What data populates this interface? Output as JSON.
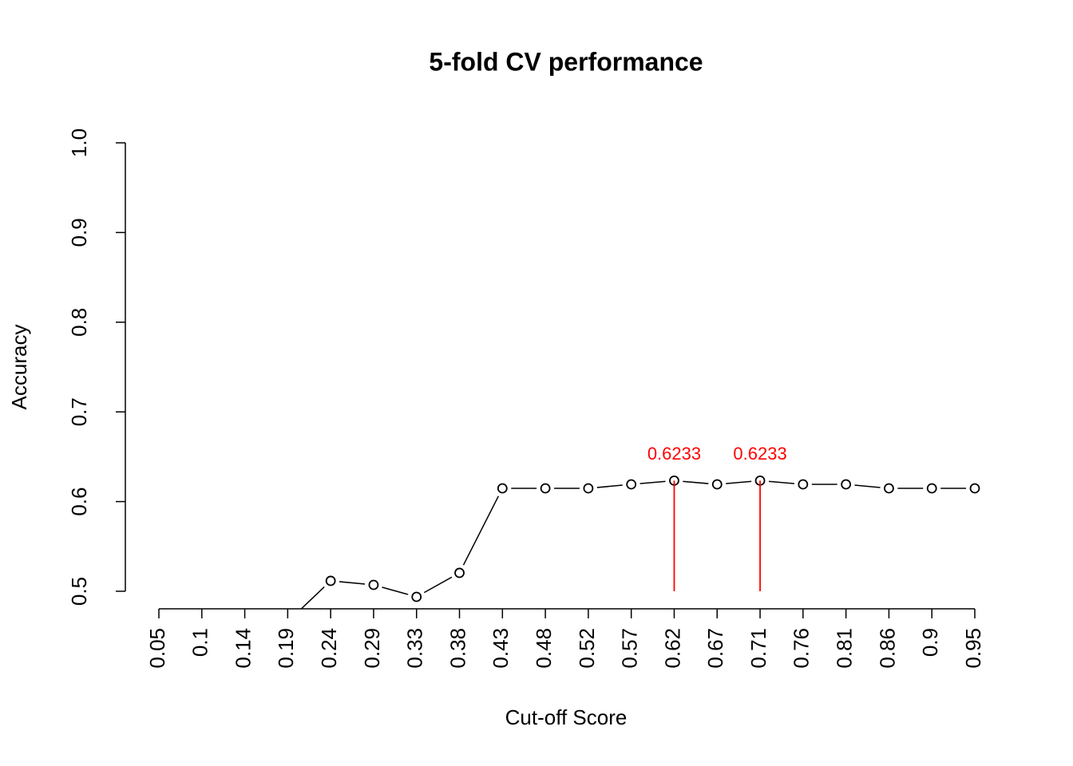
{
  "chart_data": {
    "type": "line",
    "title": "5-fold CV performance",
    "x_label": "Cut-off Score",
    "y_label": "Accuracy",
    "categories": [
      "0.05",
      "0.1",
      "0.14",
      "0.19",
      "0.24",
      "0.29",
      "0.33",
      "0.38",
      "0.43",
      "0.48",
      "0.52",
      "0.57",
      "0.62",
      "0.67",
      "0.71",
      "0.76",
      "0.81",
      "0.86",
      "0.9",
      "0.95"
    ],
    "series": [
      {
        "color": "#000000",
        "values": [
          null,
          null,
          null,
          0.466,
          0.5116,
          0.5071,
          0.4938,
          0.5205,
          0.6148,
          0.6148,
          0.6148,
          0.6192,
          0.6233,
          0.6192,
          0.6233,
          0.6192,
          0.6192,
          0.6148,
          0.6148,
          0.6148
        ]
      }
    ],
    "ylim": [
      0.5,
      1.0
    ],
    "yticks": [
      {
        "value": 0.5,
        "label": "0.5"
      },
      {
        "value": 0.6,
        "label": "0.6"
      },
      {
        "value": 0.7,
        "label": "0.7"
      },
      {
        "value": 0.8,
        "label": "0.8"
      },
      {
        "value": 0.9,
        "label": "0.9"
      },
      {
        "value": 1.0,
        "label": "1.0"
      }
    ],
    "annotations": [
      {
        "at": "0.62",
        "value": 0.6233,
        "color": "#ff0000"
      },
      {
        "at": "0.71",
        "value": 0.6233,
        "color": "#ff0000"
      }
    ]
  }
}
